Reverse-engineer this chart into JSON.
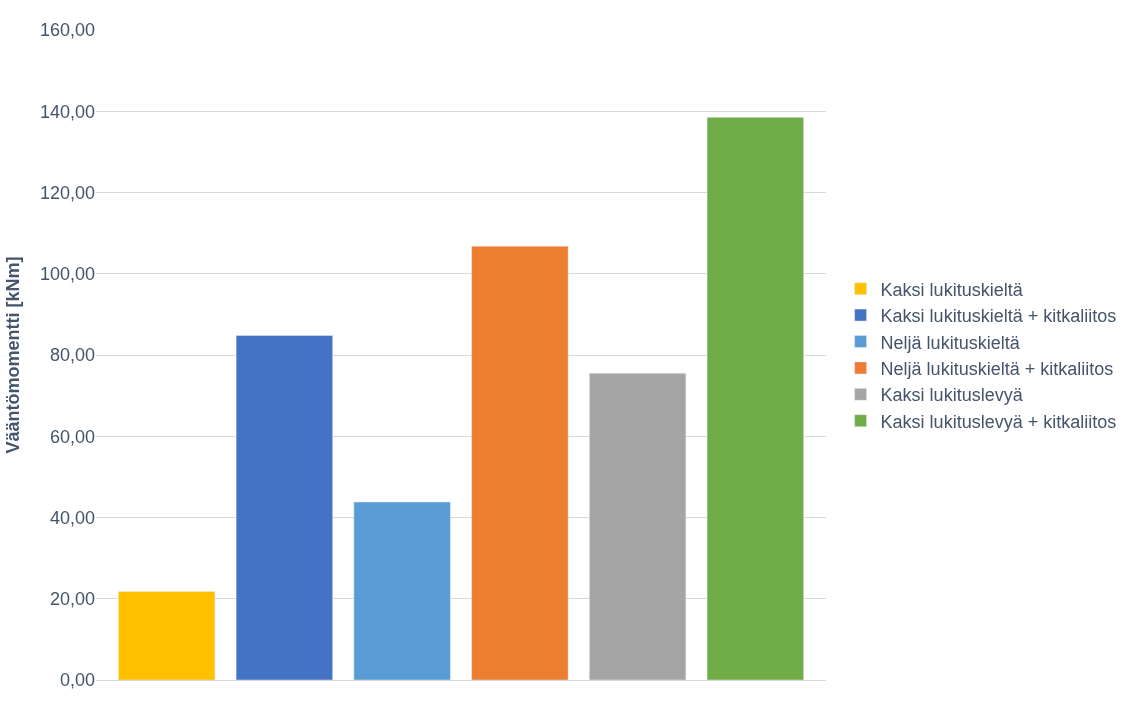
{
  "chart_data": {
    "type": "bar",
    "ylabel": "Vääntömomentti [kNm]",
    "categories": [
      null,
      null,
      null,
      null,
      null,
      null
    ],
    "series": [
      {
        "name": "Kaksi lukituskieltä",
        "color": "#ffc000",
        "values": [
          21.8,
          null,
          null,
          null,
          null,
          null
        ]
      },
      {
        "name": "Kaksi lukituskieltä + kitkaliitos",
        "color": "#4472c4",
        "values": [
          null,
          84.8,
          null,
          null,
          null,
          null
        ]
      },
      {
        "name": "Neljä lukituskieltä",
        "color": "#5b9bd5",
        "values": [
          null,
          null,
          43.8,
          null,
          null,
          null
        ]
      },
      {
        "name": "Neljä lukituskieltä + kitkaliitos",
        "color": "#ed7d31",
        "values": [
          null,
          null,
          null,
          106.8,
          null,
          null
        ]
      },
      {
        "name": "Kaksi lukituslevyä",
        "color": "#a5a5a5",
        "values": [
          null,
          null,
          null,
          null,
          75.5,
          null
        ]
      },
      {
        "name": "Kaksi lukituslevyä + kitkaliitos",
        "color": "#70ad47",
        "values": [
          null,
          null,
          null,
          null,
          null,
          138.5
        ]
      }
    ],
    "ylim": [
      0,
      160
    ],
    "yticks": [
      {
        "value": 0,
        "label": "0,00"
      },
      {
        "value": 20,
        "label": "20,00"
      },
      {
        "value": 40,
        "label": "40,00"
      },
      {
        "value": 60,
        "label": "60,00"
      },
      {
        "value": 80,
        "label": "80,00"
      },
      {
        "value": 100,
        "label": "100,00"
      },
      {
        "value": 120,
        "label": "120,00"
      },
      {
        "value": 140,
        "label": "140,00"
      },
      {
        "value": 160,
        "label": "160,00"
      }
    ],
    "grid": "y",
    "legend": "right"
  }
}
